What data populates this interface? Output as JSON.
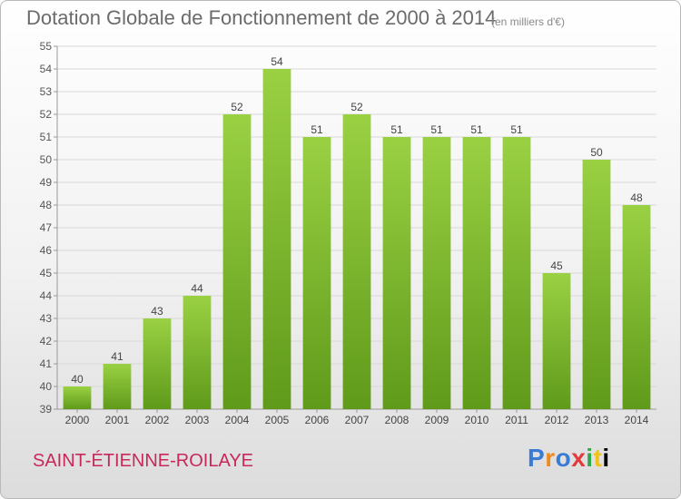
{
  "header": {
    "title": "Dotation Globale de Fonctionnement de 2000 à 2014",
    "unit_note": "(en milliers d'€)"
  },
  "footer": {
    "town": "SAINT-ÉTIENNE-ROILAYE",
    "brand": "Proxiti",
    "brand_letters": [
      "P",
      "r",
      "o",
      "x",
      "i",
      "t",
      "i"
    ]
  },
  "colors": {
    "bar_light": "#9ad143",
    "bar_dark": "#5f9a1a",
    "town": "#c8285a",
    "grid": "#d8d8d8"
  },
  "chart_data": {
    "type": "bar",
    "title": "Dotation Globale de Fonctionnement de 2000 à 2014",
    "xlabel": "",
    "ylabel": "",
    "categories": [
      "2000",
      "2001",
      "2002",
      "2003",
      "2004",
      "2005",
      "2006",
      "2007",
      "2008",
      "2009",
      "2010",
      "2011",
      "2012",
      "2013",
      "2014"
    ],
    "values": [
      40,
      41,
      43,
      44,
      52,
      54,
      51,
      52,
      51,
      51,
      51,
      51,
      45,
      50,
      48
    ],
    "ylim": [
      39,
      55
    ],
    "yticks": [
      39,
      40,
      41,
      42,
      43,
      44,
      45,
      46,
      47,
      48,
      49,
      50,
      51,
      52,
      53,
      54,
      55
    ],
    "grid": true,
    "legend": "none"
  }
}
